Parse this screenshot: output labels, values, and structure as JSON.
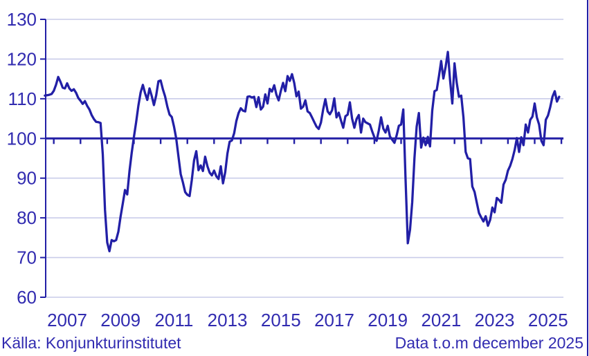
{
  "source_label": "Källa: Konjunkturinstitutet",
  "footnote": "Data t.o.m december 2025",
  "colors": {
    "line": "#221fa6",
    "axis": "#221fa6",
    "text": "#312bb0",
    "gridline": "#c9cce9",
    "background": "#ffffff"
  },
  "chart_data": {
    "type": "line",
    "title": "",
    "xlabel": "",
    "ylabel": "",
    "grid": true,
    "baseline": 100,
    "ylim": [
      60,
      130
    ],
    "y_ticks": [
      60,
      70,
      80,
      90,
      100,
      110,
      120,
      130
    ],
    "x_tick_labels": [
      "2007",
      "2009",
      "2011",
      "2013",
      "2015",
      "2017",
      "2019",
      "2021",
      "2023",
      "2025"
    ],
    "x_year_ticks": [
      2007,
      2008,
      2009,
      2010,
      2011,
      2012,
      2013,
      2014,
      2015,
      2016,
      2017,
      2018,
      2019,
      2020,
      2021,
      2022,
      2023,
      2024,
      2025,
      2026
    ],
    "x_range_years": [
      2006.67,
      2026.0
    ],
    "frequency": "monthly",
    "series_start": "2006-09",
    "series_end": "2025-12",
    "values": [
      110.8,
      110.9,
      111.0,
      111.2,
      112.0,
      113.5,
      115.5,
      114.3,
      112.8,
      112.6,
      113.9,
      112.6,
      112.0,
      112.4,
      111.5,
      110.2,
      109.5,
      108.7,
      109.4,
      108.2,
      107.3,
      105.9,
      104.9,
      104.2,
      104.1,
      103.9,
      96.0,
      82.0,
      73.8,
      71.6,
      74.4,
      74.1,
      74.4,
      76.5,
      80.3,
      83.6,
      87.0,
      85.9,
      91.8,
      96.4,
      100.4,
      104.1,
      108.2,
      111.6,
      113.5,
      111.4,
      109.7,
      112.6,
      110.7,
      108.4,
      110.9,
      114.4,
      114.6,
      112.4,
      110.6,
      108.0,
      106.0,
      105.4,
      103.0,
      100.0,
      95.5,
      91.0,
      88.9,
      86.5,
      85.8,
      85.5,
      89.5,
      94.5,
      96.8,
      92.0,
      93.2,
      91.8,
      95.4,
      93.0,
      91.4,
      90.7,
      91.9,
      90.5,
      89.8,
      93.0,
      88.7,
      91.5,
      96.2,
      99.2,
      99.5,
      101.3,
      104.4,
      106.4,
      107.6,
      107.0,
      106.8,
      110.5,
      110.6,
      110.3,
      110.5,
      107.9,
      110.4,
      107.3,
      108.0,
      111.1,
      108.8,
      112.5,
      111.8,
      113.4,
      111.0,
      109.6,
      112.0,
      114.0,
      111.9,
      115.7,
      114.5,
      116.2,
      114.0,
      110.6,
      111.8,
      107.5,
      108.0,
      109.6,
      106.8,
      106.4,
      105.3,
      104.1,
      103.0,
      102.4,
      104.0,
      107.3,
      109.9,
      106.8,
      106.1,
      107.1,
      110.1,
      105.3,
      106.5,
      104.5,
      102.7,
      105.6,
      106.0,
      109.1,
      105.0,
      102.7,
      104.9,
      105.9,
      101.5,
      105.0,
      104.1,
      103.8,
      103.5,
      101.8,
      100.3,
      99.4,
      102.0,
      105.3,
      102.5,
      101.5,
      103.2,
      100.5,
      99.7,
      98.9,
      100.8,
      103.2,
      103.5,
      107.3,
      90.0,
      73.6,
      77.0,
      84.0,
      95.0,
      103.0,
      106.4,
      97.7,
      100.2,
      98.3,
      100.4,
      98.0,
      107.0,
      111.9,
      112.2,
      115.7,
      119.5,
      115.1,
      118.0,
      121.8,
      114.6,
      108.8,
      118.9,
      114.0,
      110.5,
      110.8,
      105.3,
      96.6,
      95.0,
      94.8,
      87.9,
      86.5,
      83.8,
      81.2,
      80.1,
      79.1,
      80.4,
      78.0,
      79.5,
      82.6,
      81.4,
      85.0,
      84.5,
      83.8,
      88.4,
      89.6,
      91.9,
      93.1,
      94.8,
      97.1,
      100.1,
      96.6,
      100.3,
      98.3,
      103.5,
      101.5,
      104.7,
      105.5,
      108.8,
      105.3,
      103.5,
      99.4,
      98.3,
      104.7,
      105.8,
      107.9,
      110.5,
      111.9,
      109.3,
      110.5
    ]
  }
}
